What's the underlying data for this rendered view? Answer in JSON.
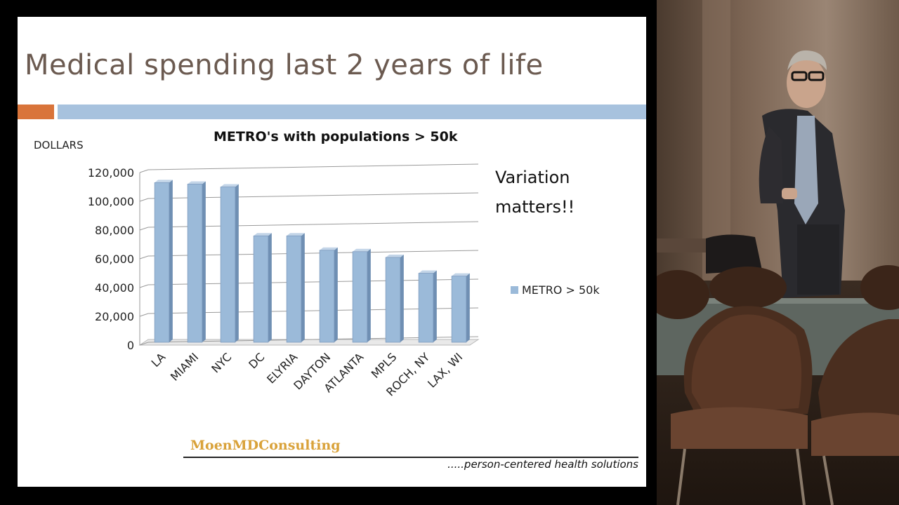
{
  "slide": {
    "title": "Medical spending last 2 years of life",
    "annotation_line1": "Variation",
    "annotation_line2": "matters!!",
    "brand": "MoenMDConsulting",
    "tagline": ".....person-centered health solutions"
  },
  "colors": {
    "title_text": "#6b5a50",
    "accent_orange": "#d9743a",
    "accent_blue": "#a7c2de",
    "bar_fill": "#9bbad9",
    "brand_gold": "#d9a23a"
  },
  "chart_data": {
    "type": "bar",
    "title": "METRO's with populations > 50k",
    "ylabel": "DOLLARS",
    "xlabel": "",
    "categories": [
      "LA",
      "MIAMI",
      "NYC",
      "DC",
      "ELYRIA",
      "DAYTON",
      "ATLANTA",
      "MPLS",
      "ROCH, NY",
      "LAX, WI"
    ],
    "series": [
      {
        "name": "METRO > 50k",
        "values": [
          112000,
          111000,
          109000,
          75000,
          75000,
          65000,
          64000,
          60000,
          49000,
          47000
        ]
      }
    ],
    "ylim": [
      0,
      120000
    ],
    "yticks": [
      "0",
      "20,000",
      "40,000",
      "60,000",
      "80,000",
      "100,000",
      "120,000"
    ],
    "grid": true,
    "legend": "right",
    "style": "3d-columns"
  }
}
